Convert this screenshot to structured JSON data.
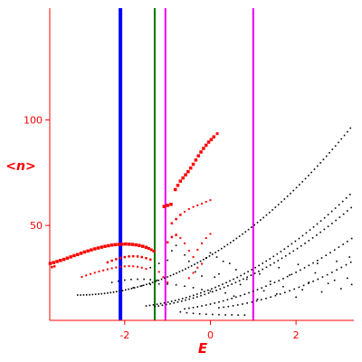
{
  "chart_data": {
    "type": "scatter",
    "title": "",
    "xlabel": "E",
    "ylabel": "<n>",
    "xlim": [
      -3.75,
      3.35
    ],
    "ylim": [
      5,
      153
    ],
    "xticks": [
      -2,
      0,
      2
    ],
    "yticks": [
      50,
      100
    ],
    "xtick_labels": [
      "-2",
      "0",
      "2"
    ],
    "ytick_labels": [
      "50",
      "100"
    ],
    "grid": false,
    "colors": {
      "axes": "#ff0000",
      "labels": "#ff0000",
      "highlight_points": "#ff0000",
      "spectrum_points": "#000000",
      "blue_line": "#0000ff",
      "green_line": "#007700",
      "magenta_line": "#ee00ee"
    },
    "vertical_lines": [
      {
        "x": -2.1,
        "color": "#0000ff",
        "width": 4
      },
      {
        "x": -1.3,
        "color": "#007700",
        "width": 2
      },
      {
        "x": -1.05,
        "color": "#ee00ee",
        "width": 2
      },
      {
        "x": 1.0,
        "color": "#ee00ee",
        "width": 2
      }
    ],
    "red_points": [
      {
        "x": -3.74,
        "y": 32.0,
        "s": 3.5
      },
      {
        "x": -3.66,
        "y": 32.4,
        "s": 3.5
      },
      {
        "x": -3.58,
        "y": 32.9,
        "s": 3.5
      },
      {
        "x": -3.5,
        "y": 33.4,
        "s": 3.5
      },
      {
        "x": -3.42,
        "y": 33.9,
        "s": 3.5
      },
      {
        "x": -3.34,
        "y": 34.5,
        "s": 3.5
      },
      {
        "x": -3.26,
        "y": 35.1,
        "s": 3.5
      },
      {
        "x": -3.18,
        "y": 35.7,
        "s": 3.5
      },
      {
        "x": -3.1,
        "y": 36.2,
        "s": 3.5
      },
      {
        "x": -3.02,
        "y": 36.8,
        "s": 3.5
      },
      {
        "x": -2.94,
        "y": 37.4,
        "s": 3.5
      },
      {
        "x": -2.86,
        "y": 37.9,
        "s": 3.5
      },
      {
        "x": -2.78,
        "y": 38.4,
        "s": 3.5
      },
      {
        "x": -2.7,
        "y": 38.9,
        "s": 3.5
      },
      {
        "x": -2.62,
        "y": 39.3,
        "s": 3.5
      },
      {
        "x": -2.54,
        "y": 39.7,
        "s": 3.5
      },
      {
        "x": -2.46,
        "y": 40.1,
        "s": 3.5
      },
      {
        "x": -2.38,
        "y": 40.4,
        "s": 3.5
      },
      {
        "x": -2.3,
        "y": 40.7,
        "s": 3.5
      },
      {
        "x": -2.22,
        "y": 40.9,
        "s": 3.5
      },
      {
        "x": -2.14,
        "y": 41.0,
        "s": 3.5
      },
      {
        "x": -2.06,
        "y": 41.1,
        "s": 3.5
      },
      {
        "x": -1.98,
        "y": 41.2,
        "s": 3.5
      },
      {
        "x": -1.9,
        "y": 41.1,
        "s": 3.5
      },
      {
        "x": -1.82,
        "y": 41.0,
        "s": 3.5
      },
      {
        "x": -1.74,
        "y": 40.8,
        "s": 3.5
      },
      {
        "x": -1.66,
        "y": 40.5,
        "s": 3.5
      },
      {
        "x": -1.58,
        "y": 40.1,
        "s": 3.5
      },
      {
        "x": -1.5,
        "y": 39.6,
        "s": 3.5
      },
      {
        "x": -1.44,
        "y": 39.1,
        "s": 3.0
      },
      {
        "x": -1.38,
        "y": 38.5,
        "s": 3.0
      },
      {
        "x": -1.32,
        "y": 37.8,
        "s": 3.0
      },
      {
        "x": -3.7,
        "y": 30.2,
        "s": 2.5
      },
      {
        "x": -3.64,
        "y": 30.6,
        "s": 2.5
      },
      {
        "x": -2.4,
        "y": 32.5,
        "s": 2.5
      },
      {
        "x": -2.3,
        "y": 33.3,
        "s": 2.5
      },
      {
        "x": -2.2,
        "y": 34.0,
        "s": 2.5
      },
      {
        "x": -2.1,
        "y": 34.6,
        "s": 2.5
      },
      {
        "x": -2.0,
        "y": 35.0,
        "s": 2.5
      },
      {
        "x": -1.9,
        "y": 35.3,
        "s": 2.5
      },
      {
        "x": -1.8,
        "y": 35.4,
        "s": 2.5
      },
      {
        "x": -1.7,
        "y": 35.3,
        "s": 2.5
      },
      {
        "x": -1.6,
        "y": 35.0,
        "s": 2.5
      },
      {
        "x": -1.5,
        "y": 34.5,
        "s": 2.5
      },
      {
        "x": -1.4,
        "y": 33.8,
        "s": 2.5
      },
      {
        "x": -3.0,
        "y": 25.6,
        "s": 2.0
      },
      {
        "x": -2.9,
        "y": 26.3,
        "s": 2.0
      },
      {
        "x": -2.8,
        "y": 27.0,
        "s": 2.0
      },
      {
        "x": -2.7,
        "y": 27.6,
        "s": 2.0
      },
      {
        "x": -2.6,
        "y": 28.2,
        "s": 2.0
      },
      {
        "x": -2.5,
        "y": 28.7,
        "s": 2.0
      },
      {
        "x": -2.4,
        "y": 29.2,
        "s": 2.0
      },
      {
        "x": -2.3,
        "y": 29.7,
        "s": 2.0
      },
      {
        "x": -2.2,
        "y": 30.1,
        "s": 2.0
      },
      {
        "x": -2.1,
        "y": 30.4,
        "s": 2.0
      },
      {
        "x": -2.0,
        "y": 30.6,
        "s": 2.0
      },
      {
        "x": -1.9,
        "y": 30.7,
        "s": 2.0
      },
      {
        "x": -1.8,
        "y": 30.6,
        "s": 2.0
      },
      {
        "x": -1.7,
        "y": 30.4,
        "s": 2.0
      },
      {
        "x": -1.6,
        "y": 30.0,
        "s": 2.0
      },
      {
        "x": -1.5,
        "y": 29.4,
        "s": 2.0
      },
      {
        "x": -1.2,
        "y": 28.0,
        "s": 2.0
      },
      {
        "x": -1.1,
        "y": 25.5,
        "s": 2.0
      },
      {
        "x": -1.0,
        "y": 23.0,
        "s": 2.0
      },
      {
        "x": -0.5,
        "y": 25.0,
        "s": 2.0
      },
      {
        "x": -0.4,
        "y": 27.5,
        "s": 2.0
      },
      {
        "x": -0.3,
        "y": 30.0,
        "s": 2.0
      },
      {
        "x": -0.2,
        "y": 31.8,
        "s": 2.0
      },
      {
        "x": -1.08,
        "y": 59.0,
        "s": 3.5
      },
      {
        "x": -1.0,
        "y": 59.5,
        "s": 3.5
      },
      {
        "x": -0.92,
        "y": 60.0,
        "s": 3.5
      },
      {
        "x": -0.82,
        "y": 67.0,
        "s": 3.5
      },
      {
        "x": -0.76,
        "y": 69.0,
        "s": 3.5
      },
      {
        "x": -0.7,
        "y": 71.0,
        "s": 3.5
      },
      {
        "x": -0.64,
        "y": 72.5,
        "s": 3.5
      },
      {
        "x": -0.58,
        "y": 74.0,
        "s": 3.5
      },
      {
        "x": -0.52,
        "y": 75.5,
        "s": 3.5
      },
      {
        "x": -0.46,
        "y": 77.2,
        "s": 3.5
      },
      {
        "x": -0.4,
        "y": 79.0,
        "s": 3.5
      },
      {
        "x": -0.34,
        "y": 81.0,
        "s": 3.5
      },
      {
        "x": -0.28,
        "y": 83.0,
        "s": 3.5
      },
      {
        "x": -0.22,
        "y": 84.8,
        "s": 3.5
      },
      {
        "x": -0.16,
        "y": 86.5,
        "s": 3.5
      },
      {
        "x": -0.1,
        "y": 88.0,
        "s": 3.5
      },
      {
        "x": -0.04,
        "y": 89.5,
        "s": 3.5
      },
      {
        "x": 0.02,
        "y": 90.7,
        "s": 3.5
      },
      {
        "x": 0.08,
        "y": 92.0,
        "s": 3.5
      },
      {
        "x": 0.16,
        "y": 93.5,
        "s": 3.0
      },
      {
        "x": -0.9,
        "y": 51.0,
        "s": 2.5
      },
      {
        "x": -0.8,
        "y": 53.0,
        "s": 2.5
      },
      {
        "x": -0.7,
        "y": 55.0,
        "s": 2.5
      },
      {
        "x": -0.6,
        "y": 56.5,
        "s": 2.0
      },
      {
        "x": -0.5,
        "y": 57.8,
        "s": 2.0
      },
      {
        "x": -0.4,
        "y": 58.8,
        "s": 2.0
      },
      {
        "x": -0.3,
        "y": 59.5,
        "s": 2.0
      },
      {
        "x": -0.2,
        "y": 60.3,
        "s": 2.0
      },
      {
        "x": -0.1,
        "y": 61.2,
        "s": 2.0
      },
      {
        "x": 0.0,
        "y": 62.0,
        "s": 2.0
      },
      {
        "x": -1.0,
        "y": 42.0,
        "s": 2.5
      },
      {
        "x": -0.9,
        "y": 44.5,
        "s": 2.5
      },
      {
        "x": -0.8,
        "y": 45.5,
        "s": 2.5
      },
      {
        "x": -0.7,
        "y": 44.0,
        "s": 2.0
      },
      {
        "x": -0.6,
        "y": 41.5,
        "s": 2.0
      },
      {
        "x": -0.5,
        "y": 38.0,
        "s": 2.0
      },
      {
        "x": -0.4,
        "y": 35.0,
        "s": 2.0
      },
      {
        "x": -0.3,
        "y": 38.5,
        "s": 2.0
      },
      {
        "x": -0.2,
        "y": 41.5,
        "s": 2.0
      },
      {
        "x": -0.1,
        "y": 44.0,
        "s": 2.0
      },
      {
        "x": 0.0,
        "y": 46.0,
        "s": 2.0
      }
    ],
    "black_series": [
      {
        "a": -3.1,
        "b": 17,
        "k": 1.95,
        "x0": -3.1,
        "x1": 3.3,
        "step": 0.07
      },
      {
        "a": -2.2,
        "b": 11,
        "k": 1.8,
        "x0": -1.5,
        "x1": 3.3,
        "step": 0.085
      },
      {
        "a": -2.3,
        "b": 10,
        "k": 1.55,
        "x0": -1.3,
        "x1": 3.3,
        "step": 0.09
      },
      {
        "a": -1.6,
        "b": 9,
        "k": 1.45,
        "x0": -0.6,
        "x1": 3.3,
        "step": 0.1
      },
      {
        "a": -0.6,
        "b": 10,
        "k": 1.5,
        "x0": 0.2,
        "x1": 3.3,
        "step": 0.11
      }
    ],
    "black_points": [
      {
        "x": -2.3,
        "y": 23.0
      },
      {
        "x": -2.15,
        "y": 23.6
      },
      {
        "x": -2.0,
        "y": 24.1
      },
      {
        "x": -1.85,
        "y": 24.4
      },
      {
        "x": -1.7,
        "y": 24.5
      },
      {
        "x": -1.55,
        "y": 24.5
      },
      {
        "x": -1.4,
        "y": 24.3
      },
      {
        "x": -1.25,
        "y": 24.0
      },
      {
        "x": -1.8,
        "y": 20.5
      },
      {
        "x": -1.6,
        "y": 21.4
      },
      {
        "x": -1.4,
        "y": 22.0
      },
      {
        "x": -1.2,
        "y": 22.3
      },
      {
        "x": -1.0,
        "y": 22.2
      },
      {
        "x": -0.8,
        "y": 21.8
      },
      {
        "x": -0.6,
        "y": 21.2
      },
      {
        "x": -0.4,
        "y": 20.5
      },
      {
        "x": -0.2,
        "y": 19.6
      },
      {
        "x": 0.0,
        "y": 18.9
      },
      {
        "x": -1.4,
        "y": 30.0
      },
      {
        "x": -1.2,
        "y": 32.0
      },
      {
        "x": -1.0,
        "y": 33.5
      },
      {
        "x": -0.9,
        "y": 38.0
      },
      {
        "x": -0.8,
        "y": 40.5
      },
      {
        "x": -0.6,
        "y": 36.0
      },
      {
        "x": -0.5,
        "y": 33.0
      },
      {
        "x": -0.35,
        "y": 28.0
      },
      {
        "x": -0.2,
        "y": 26.0
      },
      {
        "x": -0.1,
        "y": 34.5
      },
      {
        "x": 0.0,
        "y": 37.0
      },
      {
        "x": 0.15,
        "y": 35.0
      },
      {
        "x": 0.3,
        "y": 33.0
      },
      {
        "x": 0.45,
        "y": 32.0
      },
      {
        "x": 0.6,
        "y": 29.0
      },
      {
        "x": -0.7,
        "y": 9.0
      },
      {
        "x": -0.55,
        "y": 8.6
      },
      {
        "x": -0.4,
        "y": 8.3
      },
      {
        "x": -0.25,
        "y": 8.1
      },
      {
        "x": -0.1,
        "y": 7.9
      },
      {
        "x": 0.05,
        "y": 7.8
      },
      {
        "x": 0.2,
        "y": 7.7
      },
      {
        "x": 0.35,
        "y": 7.6
      },
      {
        "x": 0.5,
        "y": 7.6
      },
      {
        "x": 0.65,
        "y": 7.5
      },
      {
        "x": 0.8,
        "y": 7.5
      },
      {
        "x": 0.1,
        "y": 25.5
      },
      {
        "x": 0.2,
        "y": 27.0
      },
      {
        "x": 0.35,
        "y": 18.0
      },
      {
        "x": 0.55,
        "y": 16.5
      },
      {
        "x": 0.7,
        "y": 22.0
      },
      {
        "x": 0.85,
        "y": 24.5
      },
      {
        "x": 1.1,
        "y": 15.0
      },
      {
        "x": 1.25,
        "y": 19.0
      },
      {
        "x": 1.4,
        "y": 23.5
      },
      {
        "x": 1.55,
        "y": 17.5
      },
      {
        "x": 1.7,
        "y": 21.0
      },
      {
        "x": 1.85,
        "y": 26.5
      },
      {
        "x": 2.0,
        "y": 16.0
      },
      {
        "x": 2.15,
        "y": 19.5
      },
      {
        "x": 2.3,
        "y": 23.0
      },
      {
        "x": 2.45,
        "y": 27.5
      },
      {
        "x": 2.6,
        "y": 18.5
      },
      {
        "x": 2.75,
        "y": 22.5
      },
      {
        "x": 2.9,
        "y": 24.0
      },
      {
        "x": 3.05,
        "y": 20.0
      },
      {
        "x": 3.2,
        "y": 25.0
      },
      {
        "x": 3.3,
        "y": 22.0
      },
      {
        "x": 1.15,
        "y": 27.0
      },
      {
        "x": 1.6,
        "y": 30.0
      },
      {
        "x": 2.05,
        "y": 31.5
      },
      {
        "x": 2.5,
        "y": 32.0
      },
      {
        "x": 2.95,
        "y": 33.0
      },
      {
        "x": 3.25,
        "y": 35.0
      }
    ]
  }
}
